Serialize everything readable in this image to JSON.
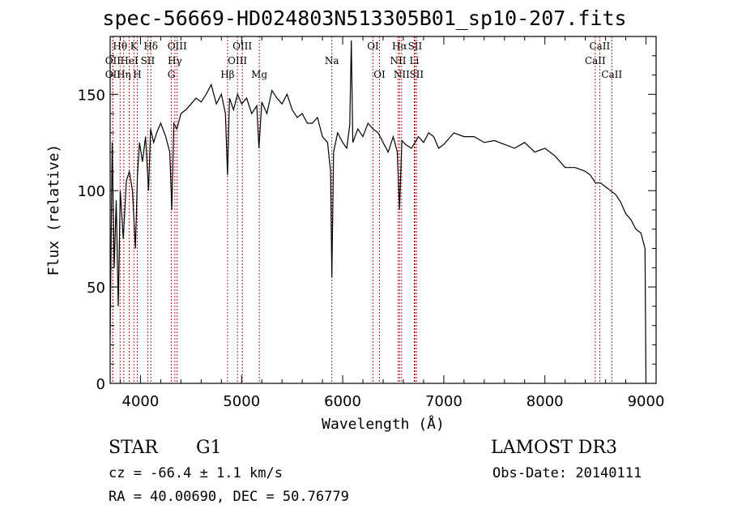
{
  "title": "spec-56669-HD024803N513305B01_sp10-207.fits",
  "info": {
    "class": "STAR",
    "subclass": "G1",
    "survey": "LAMOST DR3",
    "cz": "cz = -66.4 ± 1.1 km/s",
    "obs_date": "Obs-Date: 20140111",
    "radec": "RA =  40.00690, DEC =  50.76779"
  },
  "chart_data": {
    "type": "line",
    "title": "spec-56669-HD024803N513305B01_sp10-207.fits",
    "xlabel": "Wavelength (Å)",
    "ylabel": "Flux (relative)",
    "xlim": [
      3700,
      9100
    ],
    "ylim": [
      0,
      180
    ],
    "xticks": [
      4000,
      5000,
      6000,
      7000,
      8000,
      9000
    ],
    "yticks": [
      0,
      50,
      100,
      150
    ],
    "grid": false,
    "line_color": "#000000",
    "marker_color": "#b00000",
    "series": [
      {
        "x": [
          3700,
          3720,
          3740,
          3760,
          3780,
          3800,
          3830,
          3860,
          3890,
          3920,
          3950,
          3970,
          3990,
          4020,
          4050,
          4080,
          4100,
          4130,
          4160,
          4200,
          4250,
          4290,
          4310,
          4330,
          4360,
          4400,
          4450,
          4500,
          4550,
          4600,
          4650,
          4700,
          4750,
          4800,
          4840,
          4861,
          4880,
          4920,
          4960,
          5000,
          5050,
          5100,
          5150,
          5172,
          5200,
          5250,
          5300,
          5350,
          5400,
          5450,
          5500,
          5550,
          5600,
          5650,
          5700,
          5750,
          5800,
          5850,
          5880,
          5893,
          5910,
          5950,
          6000,
          6040,
          6070,
          6085,
          6100,
          6150,
          6200,
          6250,
          6300,
          6350,
          6400,
          6450,
          6500,
          6540,
          6563,
          6585,
          6620,
          6680,
          6750,
          6800,
          6850,
          6900,
          6950,
          7000,
          7100,
          7200,
          7300,
          7400,
          7500,
          7600,
          7700,
          7800,
          7900,
          8000,
          8100,
          8200,
          8300,
          8400,
          8450,
          8500,
          8550,
          8600,
          8650,
          8700,
          8750,
          8800,
          8850,
          8900,
          8950,
          8990,
          9000
        ],
        "y": [
          25,
          125,
          60,
          95,
          40,
          100,
          75,
          105,
          110,
          100,
          70,
          108,
          125,
          115,
          128,
          100,
          132,
          125,
          130,
          135,
          128,
          120,
          90,
          135,
          132,
          140,
          142,
          145,
          148,
          146,
          150,
          155,
          145,
          150,
          140,
          108,
          148,
          142,
          150,
          145,
          148,
          140,
          144,
          122,
          146,
          140,
          152,
          148,
          145,
          150,
          142,
          138,
          140,
          135,
          135,
          138,
          128,
          125,
          110,
          55,
          120,
          130,
          125,
          122,
          134,
          178,
          125,
          132,
          128,
          135,
          132,
          130,
          125,
          120,
          128,
          120,
          90,
          126,
          124,
          122,
          128,
          125,
          130,
          128,
          122,
          124,
          130,
          128,
          128,
          125,
          126,
          124,
          122,
          125,
          120,
          122,
          118,
          112,
          112,
          110,
          108,
          104,
          104,
          102,
          100,
          98,
          94,
          88,
          85,
          80,
          78,
          70,
          0
        ]
      }
    ],
    "line_markers": [
      {
        "label": "Hθ",
        "wl": 3798,
        "row": 0
      },
      {
        "label": "OII",
        "wl": 3727,
        "row": 1
      },
      {
        "label": "OII",
        "wl": 3727,
        "row": 2
      },
      {
        "label": "Hη",
        "wl": 3835,
        "row": 2
      },
      {
        "label": "K",
        "wl": 3934,
        "row": 0
      },
      {
        "label": "HeI",
        "wl": 3889,
        "row": 1
      },
      {
        "label": "H",
        "wl": 3968,
        "row": 2
      },
      {
        "label": "Hδ",
        "wl": 4102,
        "row": 0
      },
      {
        "label": "SII",
        "wl": 4072,
        "row": 1
      },
      {
        "label": "OIII",
        "wl": 4363,
        "row": 0
      },
      {
        "label": "Hγ",
        "wl": 4340,
        "row": 1
      },
      {
        "label": "G",
        "wl": 4305,
        "row": 2
      },
      {
        "label": "Hβ",
        "wl": 4861,
        "row": 2
      },
      {
        "label": "OIII",
        "wl": 5007,
        "row": 0
      },
      {
        "label": "OIII",
        "wl": 4959,
        "row": 1
      },
      {
        "label": "Mg",
        "wl": 5175,
        "row": 2
      },
      {
        "label": "Na",
        "wl": 5893,
        "row": 1
      },
      {
        "label": "OI",
        "wl": 6300,
        "row": 0
      },
      {
        "label": "OI",
        "wl": 6364,
        "row": 2
      },
      {
        "label": "Hα",
        "wl": 6563,
        "row": 0
      },
      {
        "label": "SII",
        "wl": 6716,
        "row": 0
      },
      {
        "label": "NII",
        "wl": 6548,
        "row": 1
      },
      {
        "label": "Li",
        "wl": 6708,
        "row": 1
      },
      {
        "label": "NII",
        "wl": 6583,
        "row": 2
      },
      {
        "label": "SII",
        "wl": 6731,
        "row": 2
      },
      {
        "label": "CaII",
        "wl": 8542,
        "row": 0
      },
      {
        "label": "CaII",
        "wl": 8498,
        "row": 1
      },
      {
        "label": "CaII",
        "wl": 8662,
        "row": 2
      }
    ]
  }
}
